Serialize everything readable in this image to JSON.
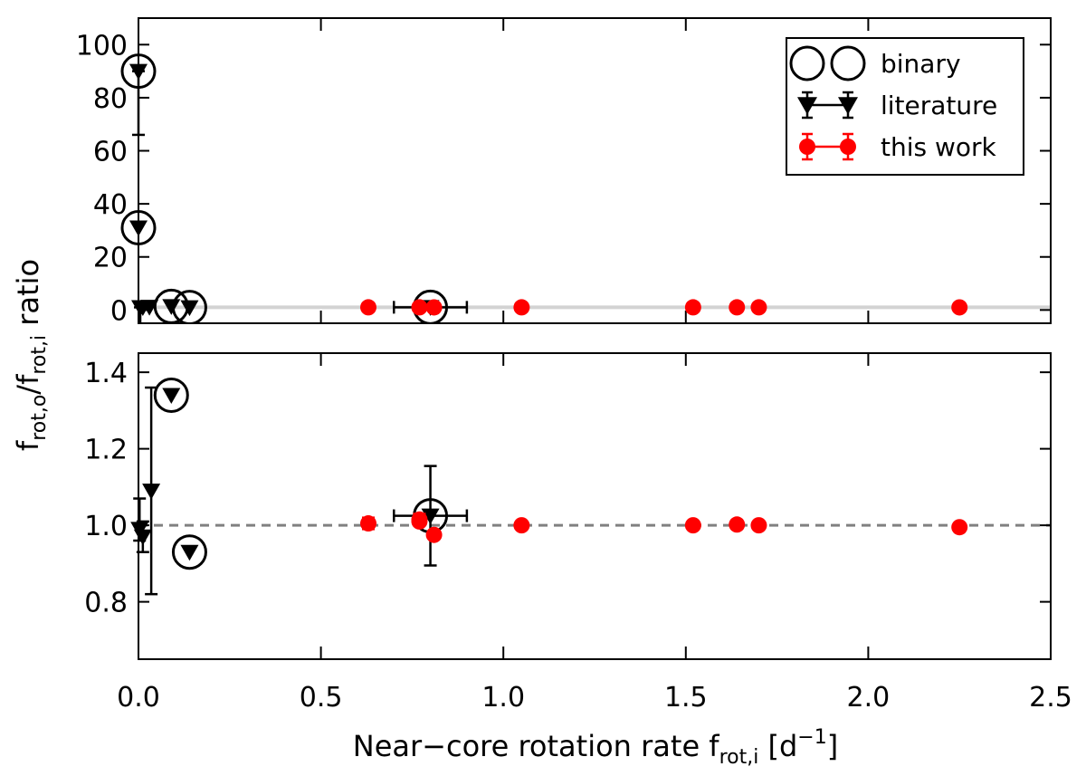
{
  "chart_data": {
    "type": "scatter",
    "shared_x": {
      "label_main": "Near−core rotation rate f",
      "label_sub": "rot,i",
      "label_unit_open": " [d",
      "label_unit_sup": "−1",
      "label_unit_close": "]",
      "xlim": [
        0,
        2.5
      ],
      "ticks": [
        0,
        0.5,
        1.0,
        1.5,
        2.0,
        2.5
      ],
      "tick_labels": [
        "0.0",
        "0.5",
        "1.0",
        "1.5",
        "2.0",
        "2.5"
      ]
    },
    "ylabel": {
      "p1": "f",
      "s1": "rot,o",
      "p2": "/f",
      "s2": "rot,i",
      "p3": " ratio"
    },
    "legend": {
      "placement": "top-right",
      "entries": [
        {
          "key": "binary",
          "label": "binary",
          "marker": "open-circle",
          "color": "#000000"
        },
        {
          "key": "literature",
          "label": "literature",
          "marker": "triangle-down",
          "color": "#000000"
        },
        {
          "key": "this_work",
          "label": "this work",
          "marker": "filled-circle",
          "color": "#ff0000"
        }
      ]
    },
    "panels": [
      {
        "id": "top",
        "ylim": [
          -5,
          110
        ],
        "yticks": [
          0,
          20,
          40,
          60,
          80,
          100
        ],
        "ytick_labels": [
          "0",
          "20",
          "40",
          "60",
          "80",
          "100"
        ],
        "reference_line": {
          "y": 1,
          "style": "solid",
          "color": "#d3d3d3"
        },
        "literature": [
          {
            "x": 0.0,
            "y": 90,
            "yerr": [
              24,
              0
            ],
            "binary": true
          },
          {
            "x": 0.0,
            "y": 31,
            "binary": true
          },
          {
            "x": 0.005,
            "y": 0.99,
            "yerr": [
              9,
              0
            ]
          },
          {
            "x": 0.012,
            "y": 0.97
          },
          {
            "x": 0.03,
            "y": 1.09
          },
          {
            "x": 0.09,
            "y": 1.34,
            "binary": true
          },
          {
            "x": 0.14,
            "y": 0.93,
            "binary": true
          },
          {
            "x": 0.8,
            "y": 1.02,
            "xerr": 0.1,
            "binary": true
          }
        ],
        "this_work": [
          {
            "x": 0.63,
            "y": 1.0
          },
          {
            "x": 0.77,
            "y": 1.01
          },
          {
            "x": 0.81,
            "y": 0.98
          },
          {
            "x": 1.05,
            "y": 1.0
          },
          {
            "x": 1.52,
            "y": 1.0
          },
          {
            "x": 1.64,
            "y": 1.0
          },
          {
            "x": 1.7,
            "y": 1.0
          },
          {
            "x": 2.25,
            "y": 0.99
          }
        ]
      },
      {
        "id": "bottom",
        "ylim": [
          0.65,
          1.45
        ],
        "yticks": [
          0.8,
          1.0,
          1.2,
          1.4
        ],
        "ytick_labels": [
          "0.8",
          "1.0",
          "1.2",
          "1.4"
        ],
        "reference_line": {
          "y": 1.0,
          "style": "dashed",
          "color": "#808080"
        },
        "literature": [
          {
            "x": 0.003,
            "y": 0.99,
            "yerr": [
              0.03,
              0.08
            ]
          },
          {
            "x": 0.012,
            "y": 0.97,
            "yerr": [
              0.04,
              0.04
            ]
          },
          {
            "x": 0.035,
            "y": 1.09,
            "yerr": [
              0.27,
              0.27
            ]
          },
          {
            "x": 0.09,
            "y": 1.34,
            "binary": true
          },
          {
            "x": 0.14,
            "y": 0.93,
            "binary": true
          },
          {
            "x": 0.8,
            "y": 1.025,
            "xerr": 0.1,
            "yerr": [
              0.13,
              0.13
            ],
            "binary": true
          }
        ],
        "this_work": [
          {
            "x": 0.63,
            "y": 1.005,
            "yerr": [
              0.015,
              0.015
            ]
          },
          {
            "x": 0.77,
            "y": 1.015,
            "yerr": [
              0.015,
              0.015
            ]
          },
          {
            "x": 0.77,
            "y": 1.01,
            "yerr": [
              0.01,
              0.01
            ]
          },
          {
            "x": 0.81,
            "y": 0.975
          },
          {
            "x": 1.05,
            "y": 1.0
          },
          {
            "x": 1.52,
            "y": 1.0
          },
          {
            "x": 1.64,
            "y": 1.002
          },
          {
            "x": 1.7,
            "y": 1.0
          },
          {
            "x": 2.25,
            "y": 0.995
          }
        ]
      }
    ]
  }
}
